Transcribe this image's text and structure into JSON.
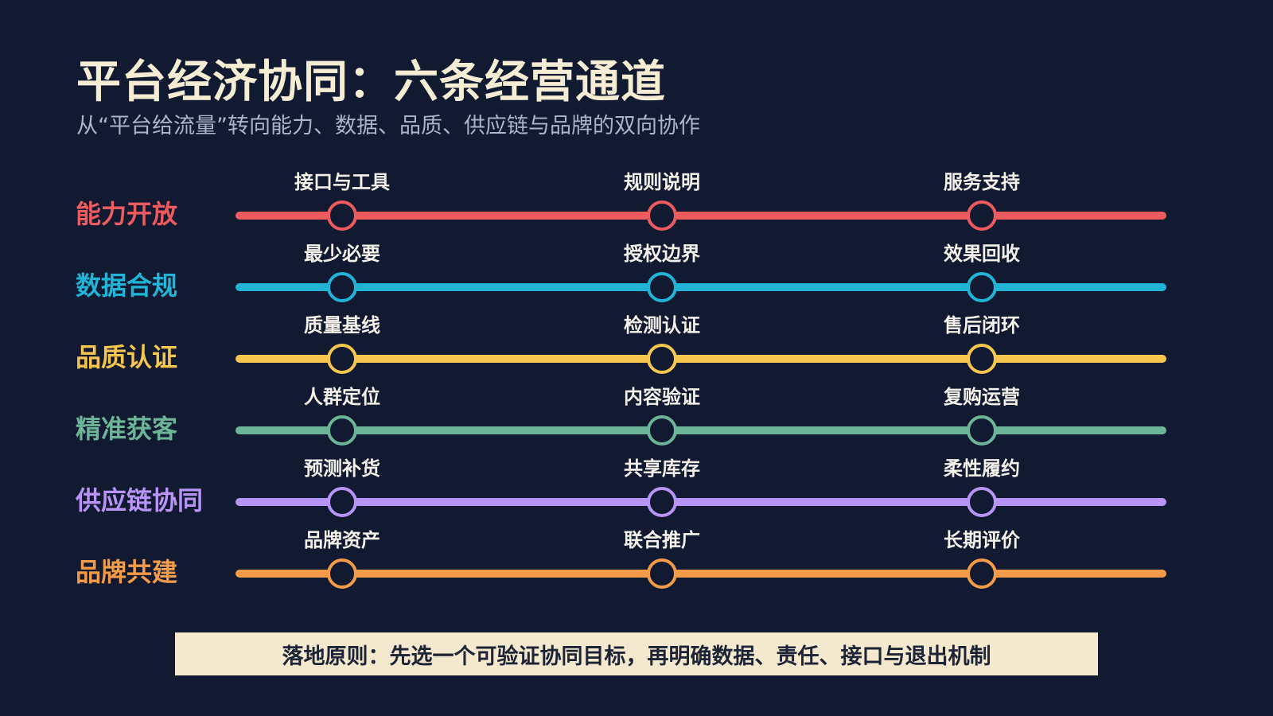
{
  "title": "平台经济协同：六条经营通道",
  "subtitle": "从“平台给流量”转向能力、数据、品质、供应链与品牌的双向协作",
  "lanes": [
    {
      "name": "能力开放",
      "color": "#ee5b5f",
      "stations": [
        "接口与工具",
        "规则说明",
        "服务支持"
      ]
    },
    {
      "name": "数据合规",
      "color": "#21b4d6",
      "stations": [
        "最少必要",
        "授权边界",
        "效果回收"
      ]
    },
    {
      "name": "品质认证",
      "color": "#f6c64f",
      "stations": [
        "质量基线",
        "检测认证",
        "售后闭环"
      ]
    },
    {
      "name": "精准获客",
      "color": "#6db599",
      "stations": [
        "人群定位",
        "内容验证",
        "复购运营"
      ]
    },
    {
      "name": "供应链协同",
      "color": "#b794f6",
      "stations": [
        "预测补货",
        "共享库存",
        "柔性履约"
      ]
    },
    {
      "name": "品牌共建",
      "color": "#f39b48",
      "stations": [
        "品牌资产",
        "联合推广",
        "长期评价"
      ]
    }
  ],
  "footer": "落地原则：先选一个可验证协同目标，再明确数据、责任、接口与退出机制"
}
